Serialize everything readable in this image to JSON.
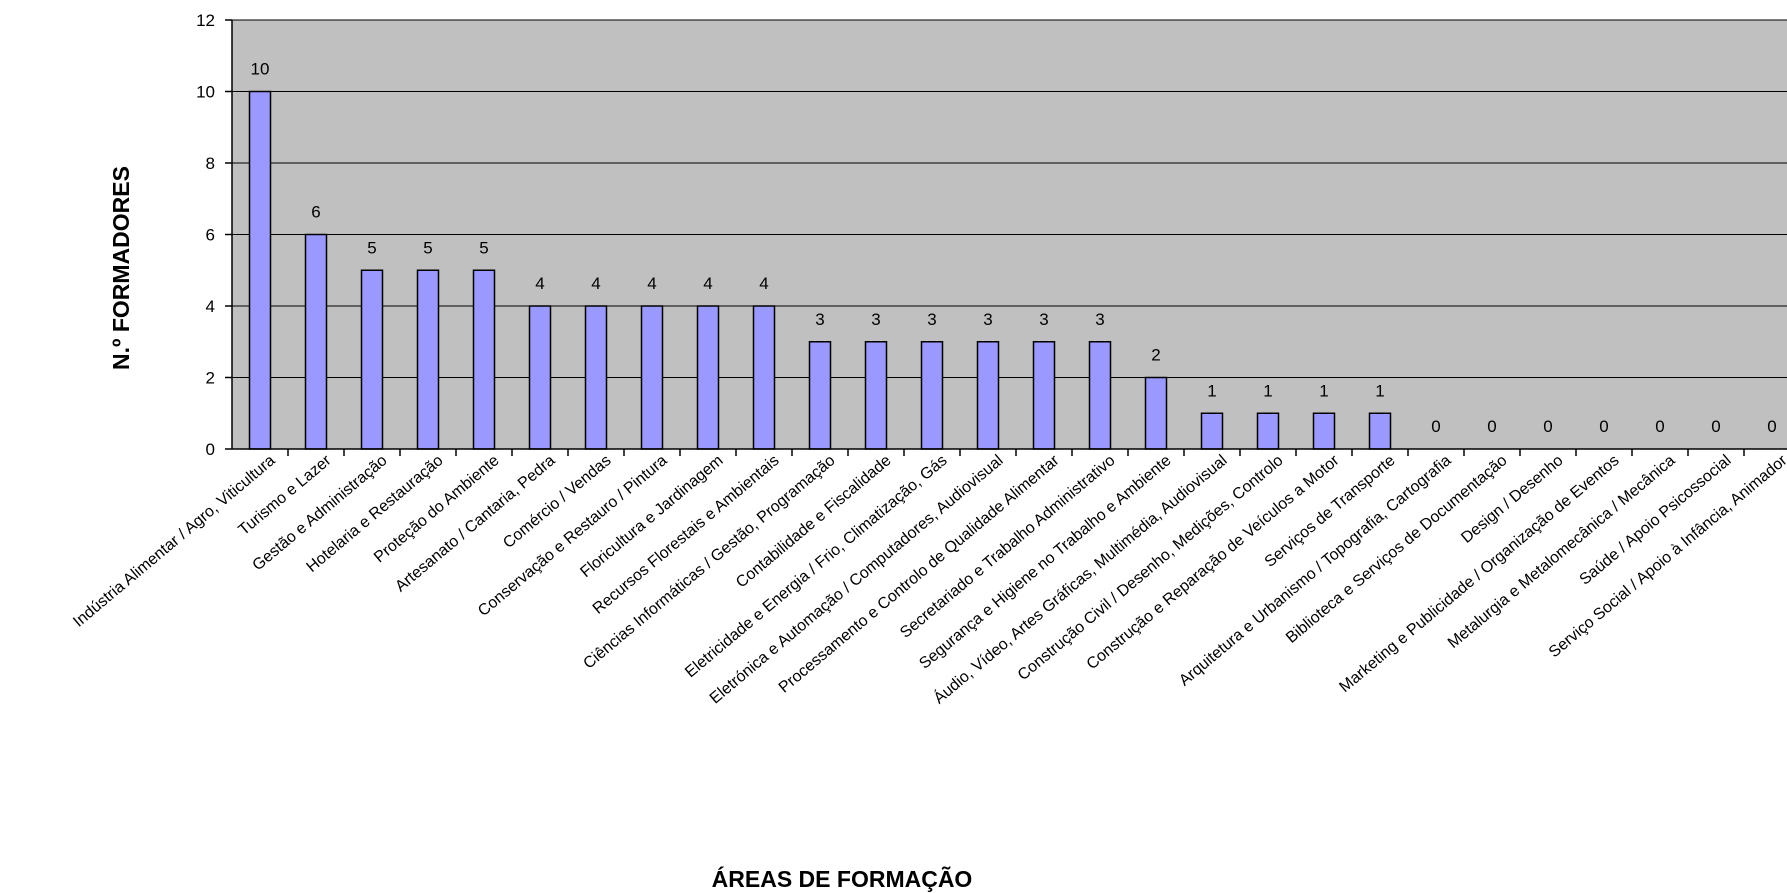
{
  "chart_data": {
    "type": "bar",
    "xlabel": "ÁREAS DE FORMAÇÃO",
    "ylabel": "N.º FORMADORES",
    "ylim": [
      0,
      12
    ],
    "yticks": [
      0,
      2,
      4,
      6,
      8,
      10,
      12
    ],
    "grid": true,
    "legend": "none",
    "colors": {
      "plot_bg": "#c0c0c0",
      "bar_fill": "#9999ff",
      "bar_stroke": "#000000",
      "grid": "#000000"
    },
    "categories": [
      "Indústria Alimentar / Agro, Viticultura",
      "Turismo e Lazer",
      "Gestão e Administração",
      "Hotelaria e Restauração",
      "Proteção do Ambiente",
      "Artesanato / Cantaria, Pedra",
      "Comércio / Vendas",
      "Conservação e Restauro / Pintura",
      "Floricultura e Jardinagem",
      "Recursos Florestais e Ambientais",
      "Ciências Informáticas / Gestão, Programação",
      "Contabilidade e Fiscalidade",
      "Eletricidade e Energia / Frio, Climatização, Gás",
      "Eletrónica e Automação / Computadores, Audiovisual",
      "Processamento e Controlo de Qualidade Alimentar",
      "Secretariado e Trabalho Administrativo",
      "Segurança e Higiene no Trabalho e Ambiente",
      "Áudio, Vídeo, Artes Gráficas, Multimédia, Audiovisual",
      "Construção Civil / Desenho, Medições, Controlo",
      "Construção e Reparação de Veículos a Motor",
      "Serviços de Transporte",
      "Arquitetura e Urbanismo / Topografia, Cartografia",
      "Biblioteca e Serviços de Documentação",
      "Design / Desenho",
      "Marketing e Publicidade / Organização de Eventos",
      "Metalurgia e Metalomecânica / Mecânica",
      "Saúde / Apoio Psicossocial",
      "Serviço Social / Apoio à Infância, Animador"
    ],
    "values": [
      10,
      6,
      5,
      5,
      5,
      4,
      4,
      4,
      4,
      4,
      3,
      3,
      3,
      3,
      3,
      3,
      2,
      1,
      1,
      1,
      1,
      0,
      0,
      0,
      0,
      0,
      0,
      0
    ]
  }
}
